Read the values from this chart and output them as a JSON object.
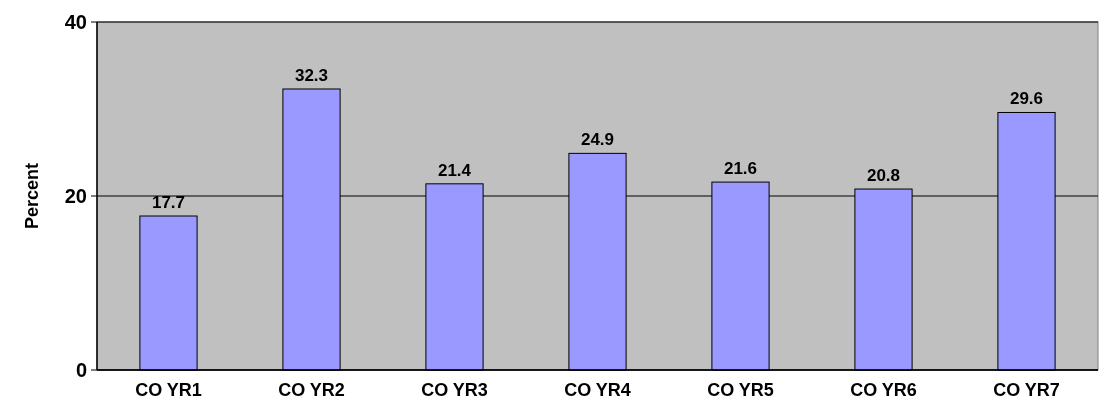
{
  "chart_data": {
    "type": "bar",
    "ylabel": "Percent",
    "categories": [
      "CO YR1",
      "CO YR2",
      "CO YR3",
      "CO YR4",
      "CO YR5",
      "CO YR6",
      "CO YR7"
    ],
    "values": [
      17.7,
      32.3,
      21.4,
      24.9,
      21.6,
      20.8,
      29.6
    ],
    "color": "#9999ff",
    "ylim": [
      0,
      40
    ],
    "yticks": [
      0,
      20,
      40
    ],
    "grid": "y",
    "data_labels": true
  }
}
